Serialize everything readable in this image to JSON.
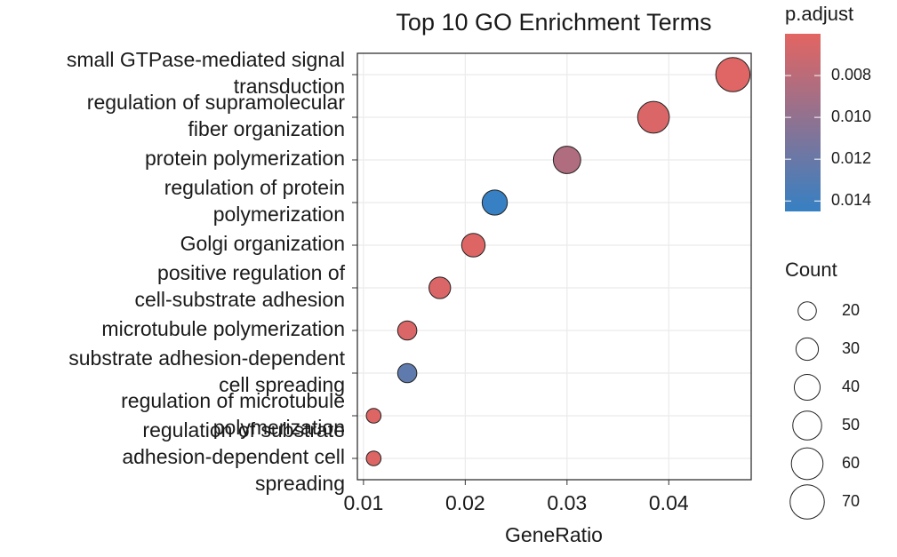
{
  "chart_data": {
    "type": "dot",
    "title": "Top 10 GO Enrichment Terms",
    "x_label": "GeneRatio",
    "categories": [
      "small GTPase-mediated signal\ntransduction",
      "regulation of supramolecular\nfiber organization",
      "protein polymerization",
      "regulation of protein\npolymerization",
      "Golgi organization",
      "positive regulation of\ncell-substrate adhesion",
      "microtubule polymerization",
      "substrate adhesion-dependent\ncell spreading",
      "regulation of microtubule\npolymerization",
      "regulation of substrate\nadhesion-dependent cell\nspreading"
    ],
    "values": [
      0.0463,
      0.0385,
      0.03,
      0.0229,
      0.0208,
      0.0175,
      0.0143,
      0.0143,
      0.011,
      0.011
    ],
    "count": [
      70,
      60,
      45,
      38,
      33,
      28,
      22,
      22,
      13,
      13
    ],
    "p_adjust": [
      0.0062,
      0.0064,
      0.0085,
      0.0145,
      0.0063,
      0.0064,
      0.0064,
      0.0125,
      0.0063,
      0.0063
    ],
    "xlim": [
      0.0094,
      0.0481
    ],
    "xticks": [
      0.01,
      0.02,
      0.03,
      0.04
    ],
    "grid": true,
    "color_legend": {
      "title": "p.adjust",
      "low_color": "#e36562",
      "high_color": "#3680c3",
      "lim": [
        0.006,
        0.0145
      ],
      "ticks": [
        0.008,
        {
          "value": 0.01,
          "label": "0.010"
        },
        0.012,
        0.014
      ]
    },
    "size_legend": {
      "title": "Count",
      "values": [
        20,
        30,
        40,
        50,
        60,
        70
      ]
    }
  }
}
